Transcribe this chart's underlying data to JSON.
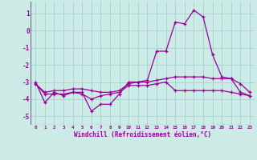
{
  "xlabel": "Windchill (Refroidissement éolien,°C)",
  "x": [
    0,
    1,
    2,
    3,
    4,
    5,
    6,
    7,
    8,
    9,
    10,
    11,
    12,
    13,
    14,
    15,
    16,
    17,
    18,
    19,
    20,
    21,
    22,
    23
  ],
  "line1": [
    -3.0,
    -4.2,
    -3.6,
    -3.8,
    -3.6,
    -3.6,
    -4.7,
    -4.3,
    -4.3,
    -3.7,
    -3.0,
    -3.0,
    -2.9,
    -1.2,
    -1.2,
    0.5,
    0.4,
    1.2,
    0.8,
    -1.4,
    -2.7,
    -2.8,
    -3.1,
    -3.6
  ],
  "line2": [
    -3.1,
    -3.6,
    -3.5,
    -3.5,
    -3.4,
    -3.4,
    -3.5,
    -3.6,
    -3.6,
    -3.5,
    -3.1,
    -3.0,
    -3.0,
    -2.9,
    -2.8,
    -2.7,
    -2.7,
    -2.7,
    -2.7,
    -2.8,
    -2.8,
    -2.8,
    -3.6,
    -3.8
  ],
  "line3": [
    -3.1,
    -3.7,
    -3.7,
    -3.7,
    -3.6,
    -3.7,
    -4.0,
    -3.8,
    -3.7,
    -3.6,
    -3.2,
    -3.2,
    -3.2,
    -3.1,
    -3.0,
    -3.5,
    -3.5,
    -3.5,
    -3.5,
    -3.5,
    -3.5,
    -3.6,
    -3.7,
    -3.8
  ],
  "ylim": [
    -5.5,
    1.7
  ],
  "yticks": [
    1,
    0,
    -1,
    -2,
    -3,
    -4,
    -5
  ],
  "bg_color": "#cceae6",
  "grid_color": "#aad4cf",
  "line_color": "#990099",
  "axis_color": "#666688",
  "marker": "+",
  "markersize": 3,
  "linewidth": 0.9
}
